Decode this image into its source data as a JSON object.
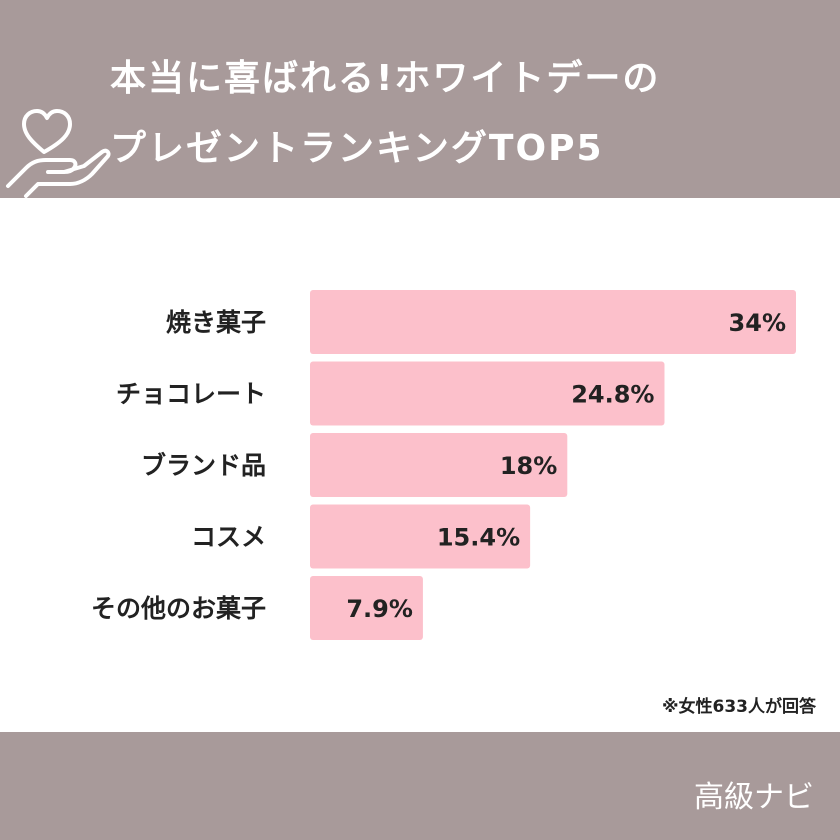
{
  "header": {
    "title_line1": "本当に喜ばれる!ホワイトデーの",
    "title_line2": "プレゼントランキングTOP5"
  },
  "icons": {
    "header_icon": "heart-in-hand-icon"
  },
  "colors": {
    "header_bg": "#a89a9a",
    "bar": "#fcc0cb",
    "text": "#222222"
  },
  "chart_data": {
    "type": "bar",
    "orientation": "horizontal",
    "categories": [
      "焼き菓子",
      "チョコレート",
      "ブランド品",
      "コスメ",
      "その他のお菓子"
    ],
    "values": [
      34,
      24.8,
      18,
      15.4,
      7.9
    ],
    "value_labels": [
      "34%",
      "24.8%",
      "18%",
      "15.4%",
      "7.9%"
    ],
    "title": "",
    "xlabel": "",
    "ylabel": "",
    "xlim": [
      0,
      34
    ],
    "grid": false,
    "legend": "none"
  },
  "footer": {
    "note": "※女性633人が回答",
    "brand": "高級ナビ"
  }
}
